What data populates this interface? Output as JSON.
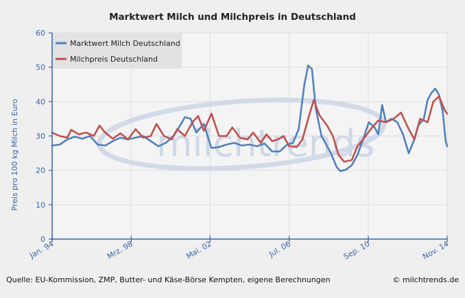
{
  "chart_data": {
    "type": "line",
    "title": "Marktwert Milch und Milchpreis in Deutschland",
    "ylabel": "Preis pro 100 kg Milch in Euro",
    "xlabel": "",
    "ylim": [
      0,
      60
    ],
    "yticks": [
      0,
      10,
      20,
      30,
      40,
      50,
      60
    ],
    "xlim": [
      1994.0,
      2014.83
    ],
    "xticks": [
      {
        "x": 1994.0,
        "label": "Jan. 94"
      },
      {
        "x": 1998.17,
        "label": "Mrz. 98"
      },
      {
        "x": 2002.33,
        "label": "Mai. 02"
      },
      {
        "x": 2006.5,
        "label": "Jul. 06"
      },
      {
        "x": 2010.67,
        "label": "Sep. 10"
      },
      {
        "x": 2014.83,
        "label": "Nov. 14"
      }
    ],
    "legend_position": "top-left",
    "grid": true,
    "series": [
      {
        "name": "Marktwert Milch Deutschland",
        "color": "#4f81bd",
        "points": [
          [
            1994.0,
            27.2
          ],
          [
            1994.4,
            27.5
          ],
          [
            1994.8,
            29.0
          ],
          [
            1995.2,
            29.8
          ],
          [
            1995.6,
            29.2
          ],
          [
            1996.0,
            30.0
          ],
          [
            1996.4,
            27.5
          ],
          [
            1996.8,
            27.2
          ],
          [
            1997.2,
            28.5
          ],
          [
            1997.6,
            29.5
          ],
          [
            1998.0,
            29.0
          ],
          [
            1998.4,
            29.5
          ],
          [
            1998.8,
            30.0
          ],
          [
            1999.2,
            28.5
          ],
          [
            1999.6,
            27.0
          ],
          [
            2000.0,
            28.0
          ],
          [
            2000.4,
            30.0
          ],
          [
            2000.8,
            33.5
          ],
          [
            2001.0,
            35.5
          ],
          [
            2001.3,
            35.0
          ],
          [
            2001.6,
            31.0
          ],
          [
            2002.0,
            33.5
          ],
          [
            2002.2,
            30.0
          ],
          [
            2002.4,
            26.5
          ],
          [
            2002.8,
            26.8
          ],
          [
            2003.2,
            27.5
          ],
          [
            2003.6,
            28.0
          ],
          [
            2004.0,
            27.2
          ],
          [
            2004.4,
            27.5
          ],
          [
            2004.8,
            27.0
          ],
          [
            2005.2,
            27.8
          ],
          [
            2005.6,
            25.5
          ],
          [
            2006.0,
            25.5
          ],
          [
            2006.4,
            27.5
          ],
          [
            2006.7,
            28.0
          ],
          [
            2007.0,
            32.0
          ],
          [
            2007.3,
            45.0
          ],
          [
            2007.5,
            50.5
          ],
          [
            2007.7,
            49.5
          ],
          [
            2007.9,
            38.0
          ],
          [
            2008.2,
            30.0
          ],
          [
            2008.4,
            28.0
          ],
          [
            2008.7,
            25.0
          ],
          [
            2009.0,
            21.0
          ],
          [
            2009.2,
            19.8
          ],
          [
            2009.5,
            20.2
          ],
          [
            2009.8,
            21.5
          ],
          [
            2010.1,
            24.5
          ],
          [
            2010.4,
            29.0
          ],
          [
            2010.7,
            34.0
          ],
          [
            2011.0,
            32.5
          ],
          [
            2011.2,
            30.5
          ],
          [
            2011.4,
            39.0
          ],
          [
            2011.6,
            34.0
          ],
          [
            2011.9,
            35.0
          ],
          [
            2012.2,
            34.0
          ],
          [
            2012.5,
            30.5
          ],
          [
            2012.8,
            25.0
          ],
          [
            2013.1,
            29.0
          ],
          [
            2013.3,
            33.0
          ],
          [
            2013.6,
            35.0
          ],
          [
            2013.8,
            40.5
          ],
          [
            2014.0,
            42.5
          ],
          [
            2014.2,
            43.8
          ],
          [
            2014.4,
            42.0
          ],
          [
            2014.6,
            37.0
          ],
          [
            2014.75,
            28.5
          ],
          [
            2014.83,
            27.0
          ]
        ]
      },
      {
        "name": "Milchpreis Deutschland",
        "color": "#c0504d",
        "points": [
          [
            1994.0,
            31.0
          ],
          [
            1994.4,
            30.0
          ],
          [
            1994.8,
            29.5
          ],
          [
            1995.0,
            31.8
          ],
          [
            1995.4,
            30.5
          ],
          [
            1995.8,
            31.0
          ],
          [
            1996.2,
            30.0
          ],
          [
            1996.5,
            33.0
          ],
          [
            1996.8,
            31.0
          ],
          [
            1997.2,
            29.2
          ],
          [
            1997.6,
            30.8
          ],
          [
            1998.0,
            29.0
          ],
          [
            1998.4,
            32.0
          ],
          [
            1998.8,
            29.5
          ],
          [
            1999.2,
            30.0
          ],
          [
            1999.5,
            33.5
          ],
          [
            1999.9,
            30.0
          ],
          [
            2000.3,
            29.0
          ],
          [
            2000.6,
            32.0
          ],
          [
            2001.0,
            30.0
          ],
          [
            2001.4,
            34.0
          ],
          [
            2001.7,
            35.8
          ],
          [
            2002.0,
            31.5
          ],
          [
            2002.4,
            36.5
          ],
          [
            2002.8,
            30.0
          ],
          [
            2003.2,
            30.0
          ],
          [
            2003.5,
            32.5
          ],
          [
            2003.9,
            29.5
          ],
          [
            2004.3,
            29.0
          ],
          [
            2004.6,
            31.0
          ],
          [
            2005.0,
            28.0
          ],
          [
            2005.3,
            30.5
          ],
          [
            2005.6,
            28.5
          ],
          [
            2005.9,
            29.0
          ],
          [
            2006.2,
            30.0
          ],
          [
            2006.5,
            27.0
          ],
          [
            2006.9,
            26.8
          ],
          [
            2007.2,
            29.0
          ],
          [
            2007.5,
            35.0
          ],
          [
            2007.8,
            40.5
          ],
          [
            2008.1,
            36.0
          ],
          [
            2008.5,
            33.0
          ],
          [
            2008.8,
            30.0
          ],
          [
            2009.1,
            24.5
          ],
          [
            2009.4,
            22.5
          ],
          [
            2009.8,
            23.0
          ],
          [
            2010.1,
            27.0
          ],
          [
            2010.4,
            29.0
          ],
          [
            2010.8,
            32.0
          ],
          [
            2011.2,
            34.5
          ],
          [
            2011.6,
            34.0
          ],
          [
            2012.0,
            35.0
          ],
          [
            2012.4,
            36.8
          ],
          [
            2012.8,
            32.0
          ],
          [
            2013.1,
            29.0
          ],
          [
            2013.4,
            35.0
          ],
          [
            2013.8,
            34.0
          ],
          [
            2014.1,
            40.0
          ],
          [
            2014.4,
            41.5
          ],
          [
            2014.7,
            37.5
          ],
          [
            2014.83,
            36.5
          ]
        ]
      }
    ]
  },
  "footer": {
    "source": "Quelle: EU-Kommission, ZMP, Butter- und Käse-Börse Kempten, eigene Berechnungen",
    "copyright": "© milchtrends.de"
  },
  "watermark": "milchtrends"
}
